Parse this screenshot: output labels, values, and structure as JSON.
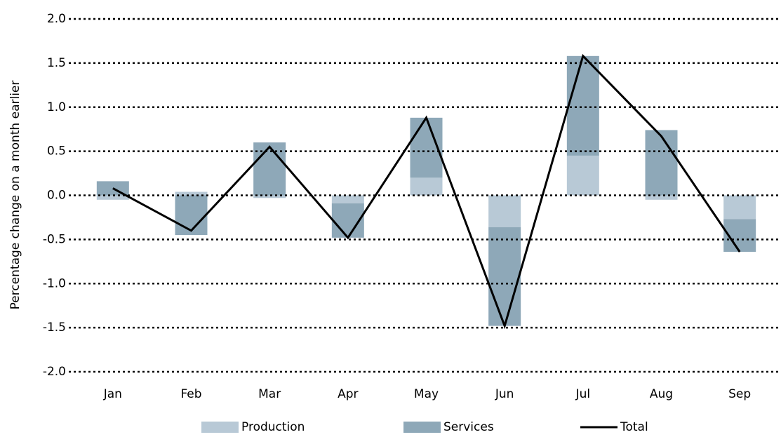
{
  "chart_data": {
    "type": "bar",
    "y_label": "Percentage change on a month earlier",
    "categories": [
      "Jan",
      "Feb",
      "Mar",
      "Apr",
      "May",
      "Jun",
      "Jul",
      "Aug",
      "Sep"
    ],
    "series": [
      {
        "name": "Production",
        "color": "#b8c9d6",
        "values": [
          -0.05,
          0.04,
          -0.03,
          -0.09,
          0.2,
          -0.36,
          0.45,
          -0.05,
          -0.27
        ]
      },
      {
        "name": "Services",
        "color": "#8ea8b8",
        "values": [
          0.16,
          -0.45,
          0.6,
          -0.39,
          0.68,
          -1.12,
          1.13,
          0.74,
          -0.37
        ]
      },
      {
        "name": "Total",
        "type": "line",
        "color": "#000000",
        "values": [
          0.08,
          -0.4,
          0.55,
          -0.48,
          0.88,
          -1.48,
          1.58,
          0.67,
          -0.64
        ]
      }
    ],
    "ylim": [
      -2,
      2
    ],
    "yticks": [
      {
        "value": -2,
        "label": "-2.0"
      },
      -1.5,
      {
        "value": -1,
        "label": "-1.0"
      },
      -0.5,
      {
        "value": 0,
        "label": "0.0"
      },
      0.5,
      {
        "value": 1,
        "label": "1.0"
      },
      1.5,
      {
        "value": 2,
        "label": "2.0"
      }
    ],
    "grid": true,
    "legend": "bottom"
  }
}
